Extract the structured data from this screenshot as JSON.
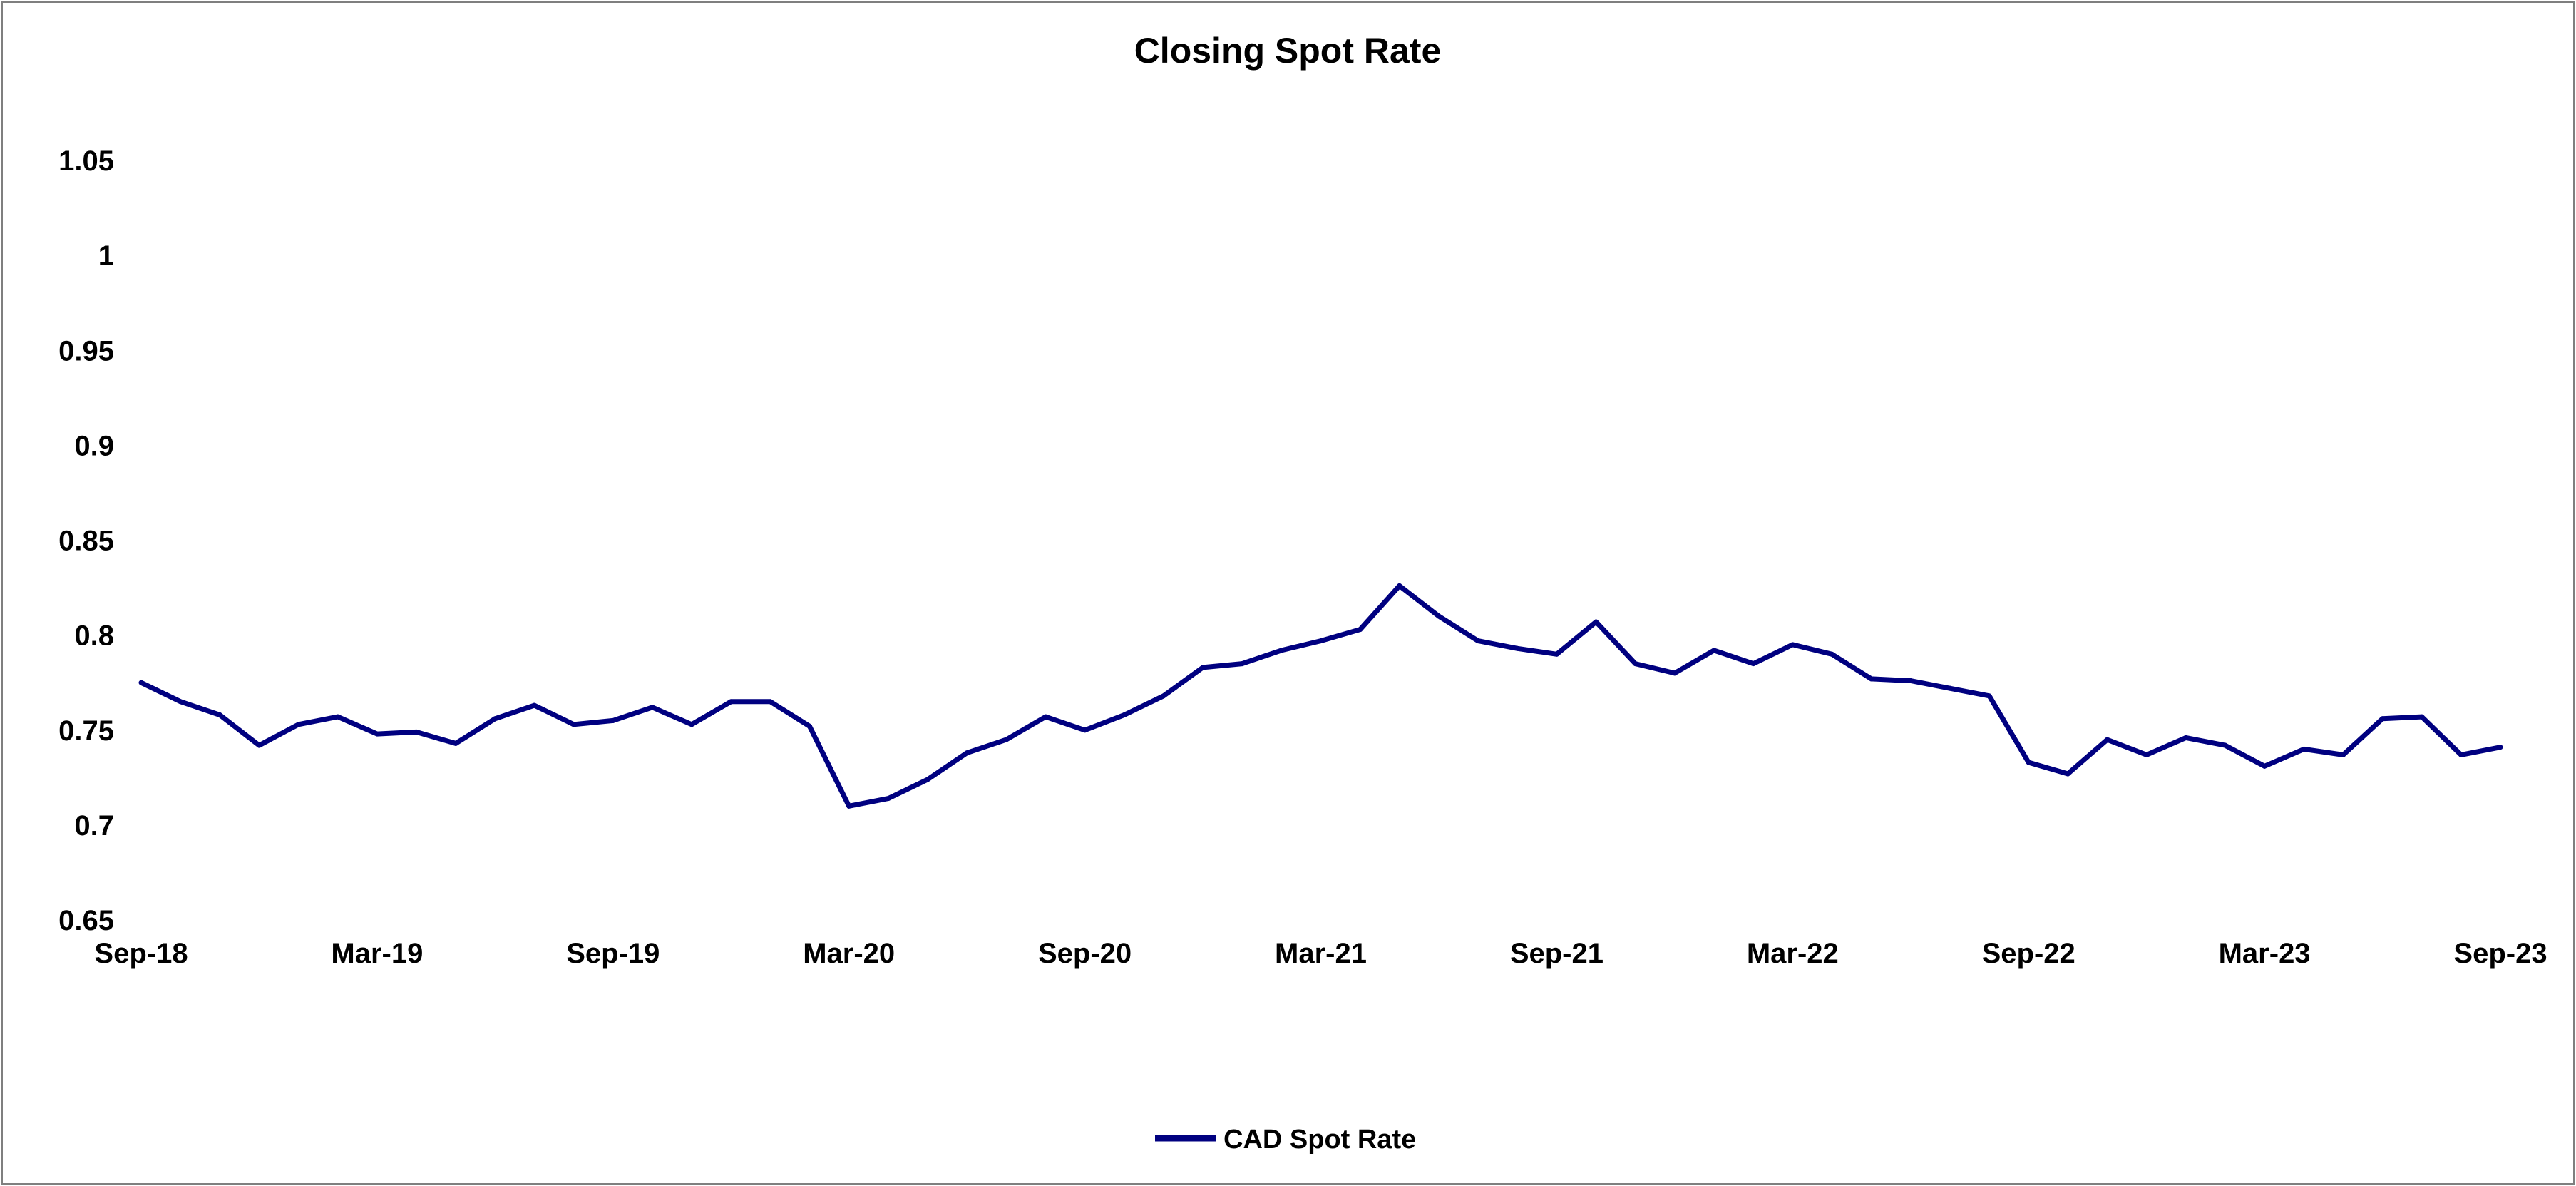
{
  "chart_data": {
    "type": "line",
    "title": "Closing Spot Rate",
    "xlabel": "",
    "ylabel": "",
    "ylim": [
      0.65,
      1.05
    ],
    "y_ticks": [
      "0.65",
      "0.7",
      "0.75",
      "0.8",
      "0.85",
      "0.9",
      "0.95",
      "1",
      "1.05"
    ],
    "x_ticks": [
      "Sep-18",
      "Mar-19",
      "Sep-19",
      "Mar-20",
      "Sep-20",
      "Mar-21",
      "Sep-21",
      "Mar-22",
      "Sep-22",
      "Mar-23",
      "Sep-23"
    ],
    "xlim": [
      "2018-09",
      "2023-09"
    ],
    "grid": false,
    "legend": "bottom-center",
    "colors": {
      "series": "#000080"
    },
    "series": [
      {
        "name": "CAD Spot Rate",
        "x": [
          "2018-09",
          "2018-10",
          "2018-11",
          "2018-12",
          "2019-01",
          "2019-02",
          "2019-03",
          "2019-04",
          "2019-05",
          "2019-06",
          "2019-07",
          "2019-08",
          "2019-09",
          "2019-10",
          "2019-11",
          "2019-12",
          "2020-01",
          "2020-02",
          "2020-03",
          "2020-04",
          "2020-05",
          "2020-06",
          "2020-07",
          "2020-08",
          "2020-09",
          "2020-10",
          "2020-11",
          "2020-12",
          "2021-01",
          "2021-02",
          "2021-03",
          "2021-04",
          "2021-05",
          "2021-06",
          "2021-07",
          "2021-08",
          "2021-09",
          "2021-10",
          "2021-11",
          "2021-12",
          "2022-01",
          "2022-02",
          "2022-03",
          "2022-04",
          "2022-05",
          "2022-06",
          "2022-07",
          "2022-08",
          "2022-09",
          "2022-10",
          "2022-11",
          "2022-12",
          "2023-01",
          "2023-02",
          "2023-03",
          "2023-04",
          "2023-05",
          "2023-06",
          "2023-07",
          "2023-08",
          "2023-09"
        ],
        "values": [
          0.775,
          0.765,
          0.758,
          0.742,
          0.753,
          0.757,
          0.748,
          0.749,
          0.743,
          0.756,
          0.763,
          0.753,
          0.755,
          0.762,
          0.753,
          0.765,
          0.765,
          0.752,
          0.71,
          0.714,
          0.724,
          0.738,
          0.745,
          0.757,
          0.75,
          0.758,
          0.768,
          0.783,
          0.785,
          0.792,
          0.797,
          0.803,
          0.826,
          0.81,
          0.797,
          0.793,
          0.79,
          0.807,
          0.785,
          0.78,
          0.792,
          0.785,
          0.795,
          0.79,
          0.777,
          0.776,
          0.772,
          0.768,
          0.733,
          0.727,
          0.745,
          0.737,
          0.746,
          0.742,
          0.731,
          0.74,
          0.737,
          0.756,
          0.757,
          0.737,
          0.741
        ]
      }
    ]
  }
}
